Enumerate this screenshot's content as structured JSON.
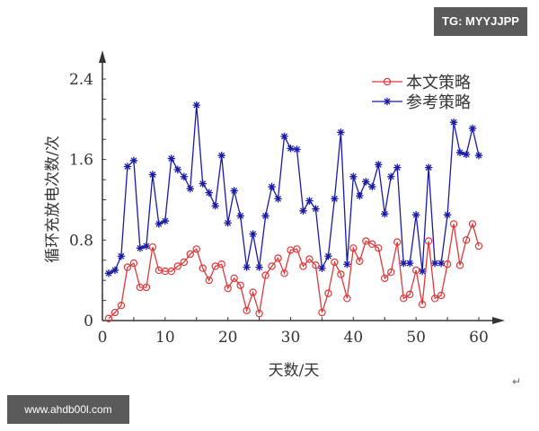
{
  "watermarks": {
    "top_right": "TG: MYYJJPP",
    "bottom_left": "www.ahdb00l.com"
  },
  "return_glyph": "↵",
  "colors": {
    "series_red": "#e0383a",
    "series_blue": "#1a1aa8",
    "axis": "#333333",
    "badge_bg": "#5a5a5a"
  },
  "chart_data": {
    "type": "line",
    "title": "",
    "xlabel": "天数/天",
    "ylabel": "循环充放电次数/次",
    "xlim": [
      0,
      62
    ],
    "ylim": [
      0,
      2.6
    ],
    "xticks": [
      0,
      10,
      20,
      30,
      40,
      50,
      60
    ],
    "yticks": [
      0,
      0.8,
      1.6,
      2.4
    ],
    "ytick_labels": [
      "0",
      "0.8",
      "1.6",
      "2.4"
    ],
    "grid": false,
    "legend_position": "upper right",
    "x": [
      1,
      2,
      3,
      4,
      5,
      6,
      7,
      8,
      9,
      10,
      11,
      12,
      13,
      14,
      15,
      16,
      17,
      18,
      19,
      20,
      21,
      22,
      23,
      24,
      25,
      26,
      27,
      28,
      29,
      30,
      31,
      32,
      33,
      34,
      35,
      36,
      37,
      38,
      39,
      40,
      41,
      42,
      43,
      44,
      45,
      46,
      47,
      48,
      49,
      50,
      51,
      52,
      53,
      54,
      55,
      56,
      57,
      58,
      59,
      60
    ],
    "series": [
      {
        "name": "本文策略",
        "color": "#e0383a",
        "marker": "circle",
        "values": [
          0.02,
          0.08,
          0.15,
          0.53,
          0.57,
          0.33,
          0.33,
          0.73,
          0.5,
          0.49,
          0.49,
          0.54,
          0.58,
          0.66,
          0.71,
          0.52,
          0.4,
          0.54,
          0.56,
          0.32,
          0.42,
          0.35,
          0.1,
          0.28,
          0.07,
          0.45,
          0.54,
          0.62,
          0.47,
          0.7,
          0.71,
          0.54,
          0.61,
          0.55,
          0.08,
          0.27,
          0.58,
          0.46,
          0.22,
          0.72,
          0.59,
          0.79,
          0.76,
          0.72,
          0.42,
          0.48,
          0.78,
          0.22,
          0.26,
          0.5,
          0.16,
          0.79,
          0.22,
          0.25,
          0.56,
          0.96,
          0.55,
          0.8,
          0.96,
          0.74
        ]
      },
      {
        "name": "参考策略",
        "color": "#1a1aa8",
        "marker": "star",
        "values": [
          0.47,
          0.5,
          0.64,
          1.53,
          1.59,
          0.72,
          0.74,
          1.45,
          0.96,
          0.99,
          1.61,
          1.5,
          1.43,
          1.31,
          2.14,
          1.36,
          1.27,
          1.14,
          1.64,
          0.97,
          1.29,
          1.04,
          0.53,
          0.86,
          0.53,
          1.04,
          1.33,
          1.21,
          1.83,
          1.71,
          1.7,
          1.09,
          1.19,
          1.11,
          0.52,
          0.64,
          1.21,
          1.87,
          0.56,
          1.43,
          1.24,
          1.38,
          1.33,
          1.55,
          1.06,
          1.43,
          1.52,
          0.57,
          0.57,
          1.05,
          0.49,
          1.52,
          0.57,
          0.57,
          1.05,
          1.97,
          1.67,
          1.65,
          1.91,
          1.64
        ]
      }
    ]
  }
}
